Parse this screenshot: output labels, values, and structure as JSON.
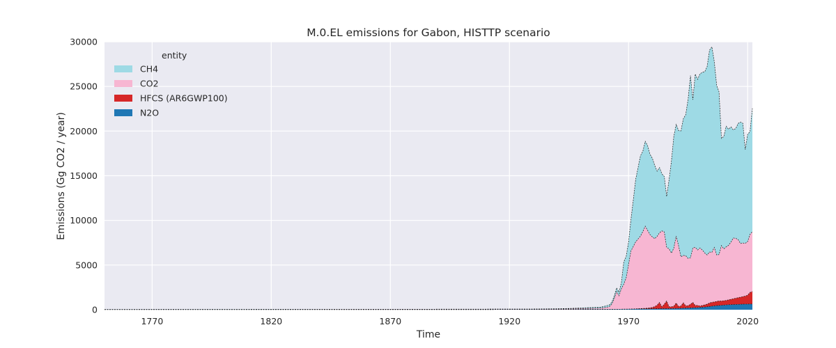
{
  "chart_data": {
    "type": "area",
    "stacked": true,
    "title": "M.0.EL emissions for Gabon, HISTTP scenario",
    "xlabel": "Time",
    "ylabel": "Emissions (Gg CO2 / year)",
    "xlim": [
      1750,
      2022
    ],
    "ylim": [
      0,
      30000
    ],
    "xticks": [
      1770,
      1820,
      1870,
      1920,
      1970,
      2020
    ],
    "yticks": [
      0,
      5000,
      10000,
      15000,
      20000,
      25000,
      30000
    ],
    "grid": true,
    "legend": {
      "title": "entity",
      "position": "top-left"
    },
    "x": [
      1750,
      1800,
      1850,
      1900,
      1930,
      1940,
      1945,
      1950,
      1955,
      1958,
      1960,
      1962,
      1963,
      1964,
      1965,
      1966,
      1967,
      1968,
      1969,
      1970,
      1971,
      1972,
      1973,
      1974,
      1975,
      1976,
      1977,
      1978,
      1979,
      1980,
      1981,
      1982,
      1983,
      1984,
      1985,
      1986,
      1987,
      1988,
      1989,
      1990,
      1991,
      1992,
      1993,
      1994,
      1995,
      1996,
      1997,
      1998,
      1999,
      2000,
      2001,
      2002,
      2003,
      2004,
      2005,
      2006,
      2007,
      2008,
      2009,
      2010,
      2011,
      2012,
      2013,
      2014,
      2015,
      2016,
      2017,
      2018,
      2019,
      2020,
      2021,
      2022
    ],
    "series": [
      {
        "name": "N2O",
        "color": "#1f77b4",
        "values": [
          15,
          15,
          15,
          20,
          25,
          30,
          30,
          35,
          40,
          40,
          40,
          45,
          45,
          50,
          50,
          55,
          55,
          60,
          60,
          65,
          70,
          75,
          80,
          85,
          90,
          90,
          95,
          100,
          100,
          105,
          105,
          110,
          115,
          120,
          120,
          125,
          130,
          135,
          140,
          150,
          160,
          170,
          180,
          190,
          200,
          210,
          220,
          230,
          240,
          260,
          280,
          300,
          330,
          360,
          400,
          430,
          460,
          480,
          500,
          520,
          540,
          560,
          570,
          580,
          590,
          600,
          610,
          620,
          630,
          630,
          640,
          640
        ]
      },
      {
        "name": "HFCS (AR6GWP100)",
        "color": "#d62728",
        "values": [
          0,
          0,
          0,
          0,
          0,
          0,
          0,
          0,
          0,
          0,
          0,
          0,
          0,
          0,
          0,
          0,
          0,
          0,
          0,
          0,
          5,
          10,
          20,
          30,
          40,
          50,
          60,
          80,
          110,
          150,
          250,
          400,
          700,
          200,
          500,
          850,
          200,
          200,
          250,
          600,
          200,
          250,
          600,
          250,
          250,
          400,
          600,
          250,
          250,
          150,
          200,
          250,
          300,
          400,
          430,
          450,
          470,
          500,
          480,
          490,
          500,
          550,
          600,
          650,
          700,
          750,
          800,
          850,
          900,
          1000,
          1300,
          1400
        ]
      },
      {
        "name": "CO2",
        "color": "#f7b6d2",
        "values": [
          10,
          15,
          20,
          30,
          40,
          60,
          80,
          100,
          120,
          140,
          200,
          300,
          600,
          1200,
          2000,
          1500,
          2300,
          2800,
          3500,
          5000,
          6500,
          7000,
          7500,
          7800,
          8100,
          8600,
          9200,
          8700,
          8200,
          7900,
          7600,
          7700,
          7800,
          8500,
          8100,
          6000,
          6500,
          6000,
          6500,
          7500,
          6800,
          5500,
          5300,
          5600,
          5300,
          5200,
          6100,
          6500,
          6200,
          6500,
          6200,
          5800,
          5500,
          5700,
          5600,
          6100,
          5200,
          5200,
          6200,
          5800,
          6000,
          6100,
          6400,
          6800,
          6700,
          6500,
          6000,
          6000,
          5900,
          6000,
          6500,
          6700
        ]
      },
      {
        "name": "CH4",
        "color": "#9edae5",
        "values": [
          5,
          5,
          5,
          10,
          10,
          20,
          30,
          60,
          90,
          100,
          150,
          200,
          200,
          300,
          400,
          400,
          700,
          2500,
          2400,
          2500,
          3500,
          5200,
          7000,
          8000,
          9000,
          9000,
          9500,
          9500,
          9000,
          8800,
          8200,
          7300,
          7300,
          6400,
          6200,
          5700,
          7700,
          10300,
          12500,
          12500,
          12900,
          14100,
          15300,
          15800,
          17800,
          20400,
          16600,
          19400,
          19100,
          19500,
          19900,
          20300,
          21100,
          22600,
          23000,
          20800,
          19000,
          18200,
          12000,
          12600,
          13500,
          13000,
          12900,
          12100,
          12300,
          13000,
          13600,
          13400,
          10500,
          12000,
          11500,
          13800
        ]
      }
    ],
    "total_dashed": true
  }
}
